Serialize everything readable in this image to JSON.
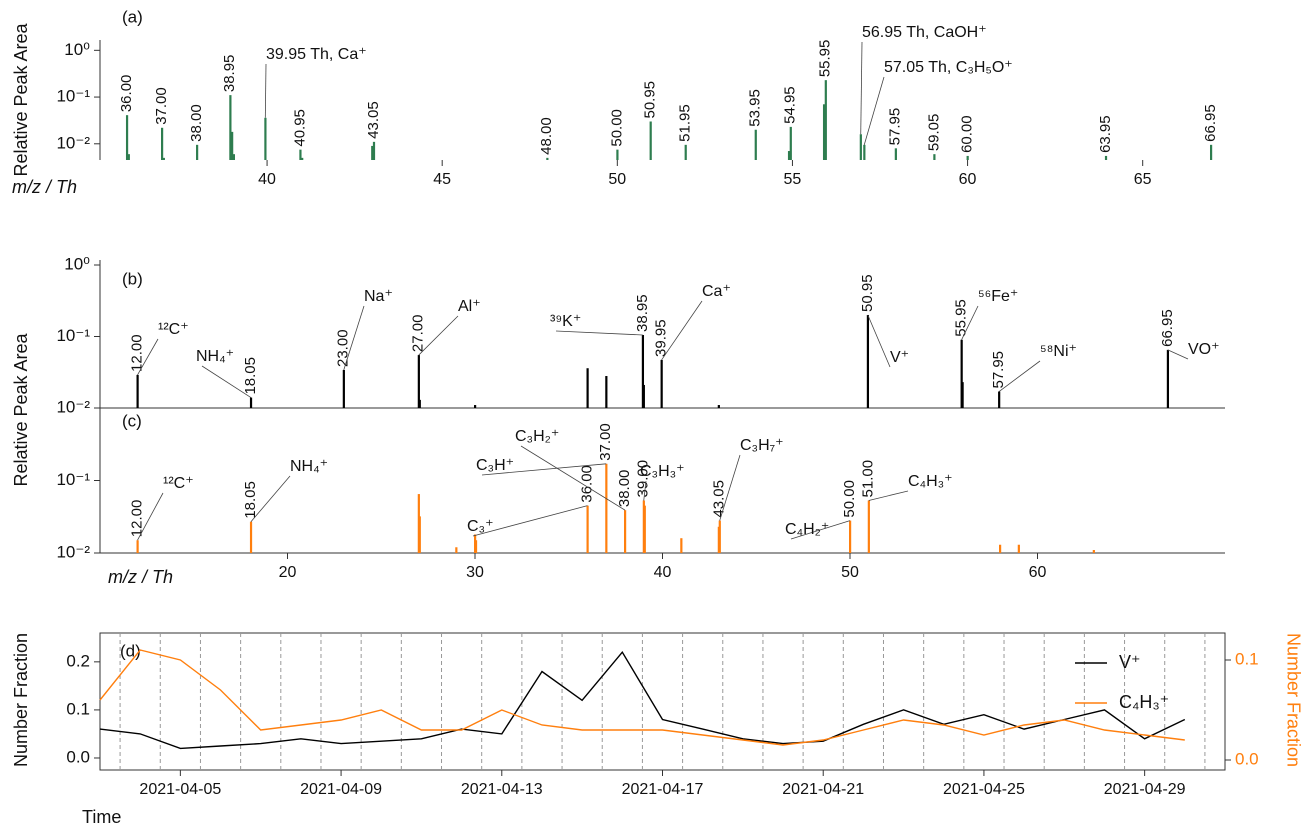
{
  "chart_data": [
    {
      "type": "stem",
      "panel": "(a)",
      "ylabel": "Relative Peak Area",
      "xlabel": "m/z / Th",
      "color": "#2e7d4f",
      "log_y": true,
      "xlim": [
        35.23,
        67.35
      ],
      "ylim": [
        0.0045,
        1.3
      ],
      "xticks": [
        40,
        45,
        50,
        55,
        60,
        65
      ],
      "yticks": [
        {
          "value": 1,
          "label": "10⁰"
        },
        {
          "value": 0.1,
          "label": "10⁻¹"
        },
        {
          "value": 0.01,
          "label": "10⁻²"
        }
      ],
      "x": [
        36.0,
        36.05,
        37.0,
        37.05,
        38.0,
        38.95,
        39.0,
        39.05,
        39.95,
        40.95,
        41.0,
        43.0,
        43.05,
        48.0,
        50.0,
        50.95,
        51.95,
        53.95,
        54.9,
        54.95,
        55.9,
        55.95,
        56.95,
        57.05,
        57.95,
        59.05,
        60.0,
        63.95,
        66.95
      ],
      "x_labels": [
        "36.00",
        null,
        "37.00",
        null,
        "38.00",
        "38.95",
        null,
        null,
        null,
        "40.95",
        null,
        null,
        "43.05",
        "48.00",
        "50.00",
        "50.95",
        "51.95",
        "53.95",
        null,
        "54.95",
        null,
        "55.95",
        null,
        null,
        "57.95",
        "59.05",
        "60.00",
        "63.95",
        "66.95"
      ],
      "values": [
        0.041,
        0.006,
        0.022,
        0.005,
        0.0095,
        0.11,
        0.018,
        0.006,
        0.036,
        0.0075,
        0.005,
        0.009,
        0.011,
        0.005,
        0.0075,
        0.03,
        0.0095,
        0.02,
        0.007,
        0.023,
        0.07,
        0.23,
        0.016,
        0.0095,
        0.008,
        0.006,
        0.0055,
        0.0055,
        0.0095
      ],
      "annotations": [
        {
          "text": "39.95 Th, Ca⁺",
          "x": 39.95
        },
        {
          "text": "56.95 Th, CaOH⁺",
          "x": 56.95
        },
        {
          "text": "57.05 Th, C₃H₅O⁺",
          "x": 57.05
        }
      ]
    },
    {
      "type": "stem",
      "panel": "(b)",
      "ylabel": "Relative Peak Area",
      "color": "#000000",
      "log_y": true,
      "xlim": [
        10,
        70
      ],
      "ylim": [
        0.01,
        1
      ],
      "yticks": [
        {
          "value": 1,
          "label": "10⁰"
        },
        {
          "value": 0.1,
          "label": "10⁻¹"
        },
        {
          "value": 0.01,
          "label": "10⁻²"
        }
      ],
      "x": [
        12.0,
        18.05,
        23.0,
        27.0,
        27.05,
        30.0,
        36.0,
        37.0,
        38.95,
        39.0,
        39.95,
        43.0,
        50.95,
        55.95,
        56.0,
        57.95,
        66.95
      ],
      "x_labels": [
        "12.00",
        "18.05",
        "23.00",
        "27.00",
        null,
        null,
        null,
        null,
        "38.95",
        null,
        "39.95",
        null,
        "50.95",
        "55.95",
        null,
        "57.95",
        "66.95"
      ],
      "values": [
        0.029,
        0.014,
        0.034,
        0.055,
        0.013,
        0.011,
        0.036,
        0.028,
        0.105,
        0.021,
        0.047,
        0.011,
        0.2,
        0.09,
        0.023,
        0.017,
        0.065
      ],
      "annotations": [
        {
          "text": "¹²C⁺",
          "x": 12.0
        },
        {
          "text": "NH₄⁺",
          "x": 18.05
        },
        {
          "text": "Na⁺",
          "x": 23.0
        },
        {
          "text": "Al⁺",
          "x": 27.0
        },
        {
          "text": "³⁹K⁺",
          "x": 38.95
        },
        {
          "text": "Ca⁺",
          "x": 39.95
        },
        {
          "text": "V⁺",
          "x": 50.95
        },
        {
          "text": "⁵⁶Fe⁺",
          "x": 55.95
        },
        {
          "text": "⁵⁸Ni⁺",
          "x": 57.95
        },
        {
          "text": "VO⁺",
          "x": 66.95
        }
      ]
    },
    {
      "type": "stem",
      "panel": "(c)",
      "xlabel": "m/z / Th",
      "color": "#ff7f0e",
      "log_y": true,
      "xlim": [
        10,
        70
      ],
      "ylim": [
        0.01,
        1
      ],
      "xticks": [
        20,
        30,
        40,
        50,
        60
      ],
      "yticks": [
        {
          "value": 0.1,
          "label": "10⁻¹"
        },
        {
          "value": 0.01,
          "label": "10⁻²"
        }
      ],
      "x": [
        12.0,
        18.05,
        27.0,
        27.05,
        29.0,
        30.0,
        30.05,
        36.0,
        37.0,
        38.0,
        39.0,
        39.05,
        41.0,
        43.0,
        43.05,
        50.0,
        51.0,
        58.0,
        59.0,
        63.0
      ],
      "x_labels": [
        "12.00",
        "18.05",
        null,
        null,
        null,
        null,
        null,
        "36.00",
        "37.00",
        "38.00",
        "39.00",
        null,
        null,
        null,
        "43.05",
        "50.00",
        "51.00",
        null,
        null,
        null
      ],
      "values": [
        0.015,
        0.027,
        0.065,
        0.032,
        0.012,
        0.018,
        0.015,
        0.045,
        0.17,
        0.039,
        0.053,
        0.045,
        0.016,
        0.023,
        0.028,
        0.028,
        0.053,
        0.013,
        0.013,
        0.011
      ],
      "annotations": [
        {
          "text": "¹²C⁺",
          "x": 12.0
        },
        {
          "text": "NH₄⁺",
          "x": 18.05
        },
        {
          "text": "C₃⁺",
          "x": 36.0
        },
        {
          "text": "C₃H⁺",
          "x": 37.0
        },
        {
          "text": "C₃H₂⁺",
          "x": 38.0
        },
        {
          "text": "C₃H₃⁺",
          "x": 39.0
        },
        {
          "text": "C₃H₇⁺",
          "x": 43.05
        },
        {
          "text": "C₄H₂⁺",
          "x": 50.0
        },
        {
          "text": "C₄H₃⁺",
          "x": 51.0
        }
      ]
    },
    {
      "type": "line",
      "panel": "(d)",
      "ylabel": "Number Fraction",
      "y2label": "Number Fraction",
      "xlabel": "Time",
      "legend": "upper right",
      "xlim": [
        "2021-04-03",
        "2021-05-01"
      ],
      "xticks": [
        "2021-04-05",
        "2021-04-09",
        "2021-04-13",
        "2021-04-17",
        "2021-04-21",
        "2021-04-25",
        "2021-04-29"
      ],
      "ylim": [
        -0.025,
        0.26
      ],
      "yticks": [
        {
          "value": 0,
          "label": "0.0"
        },
        0.1,
        0.2
      ],
      "y2lim": [
        -0.01,
        0.127
      ],
      "y2ticks": [
        {
          "value": 0,
          "label": "0.0"
        },
        0.1
      ],
      "x": [
        "2021-04-03",
        "2021-04-04",
        "2021-04-05",
        "2021-04-06",
        "2021-04-07",
        "2021-04-08",
        "2021-04-09",
        "2021-04-10",
        "2021-04-11",
        "2021-04-12",
        "2021-04-13",
        "2021-04-14",
        "2021-04-15",
        "2021-04-16",
        "2021-04-17",
        "2021-04-18",
        "2021-04-19",
        "2021-04-20",
        "2021-04-21",
        "2021-04-22",
        "2021-04-23",
        "2021-04-24",
        "2021-04-25",
        "2021-04-26",
        "2021-04-27",
        "2021-04-28",
        "2021-04-29",
        "2021-04-30"
      ],
      "series": [
        {
          "name": "V⁺",
          "color": "#000000",
          "values": [
            0.06,
            0.05,
            0.02,
            0.025,
            0.03,
            0.04,
            0.03,
            0.035,
            0.04,
            0.06,
            0.05,
            0.18,
            0.12,
            0.22,
            0.08,
            0.06,
            0.04,
            0.03,
            0.035,
            0.07,
            0.1,
            0.07,
            0.09,
            0.06,
            0.08,
            0.1,
            0.04,
            0.08
          ]
        },
        {
          "name": "C₄H₃⁺",
          "color": "#ff7f0e",
          "axis": "y2",
          "values": [
            0.06,
            0.11,
            0.1,
            0.07,
            0.03,
            0.035,
            0.04,
            0.05,
            0.03,
            0.03,
            0.05,
            0.035,
            0.03,
            0.03,
            0.03,
            0.025,
            0.02,
            0.015,
            0.02,
            0.03,
            0.04,
            0.035,
            0.025,
            0.035,
            0.04,
            0.03,
            0.025,
            0.02
          ]
        }
      ]
    }
  ]
}
